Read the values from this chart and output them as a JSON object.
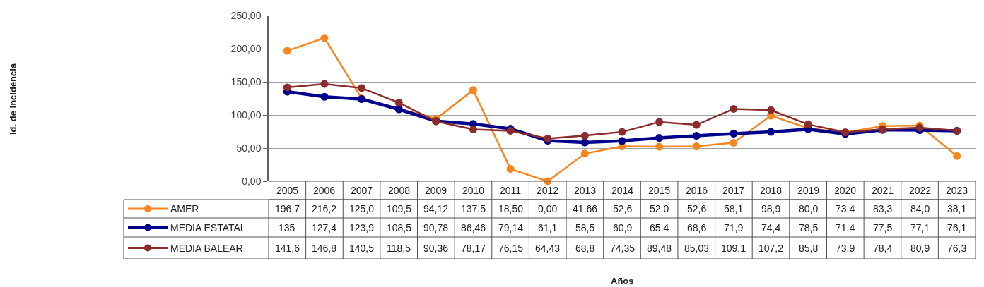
{
  "chart_data": {
    "type": "line",
    "annotations": [
      "Años",
      "Id. de incidencia"
    ],
    "categories": [
      "2005",
      "2006",
      "2007",
      "2008",
      "2009",
      "2010",
      "2011",
      "2012",
      "2013",
      "2014",
      "2015",
      "2016",
      "2017",
      "2018",
      "2019",
      "2020",
      "2021",
      "2022",
      "2023"
    ],
    "series": [
      {
        "name": "AMER",
        "color": "#f7861e",
        "values": [
          196.7,
          216.2,
          125.0,
          109.5,
          94.12,
          137.5,
          18.5,
          0.0,
          41.66,
          52.6,
          52.0,
          52.6,
          58.1,
          98.9,
          80.0,
          73.4,
          83.3,
          84.0,
          38.1
        ],
        "value_labels": [
          "196,7",
          "216,2",
          "125,0",
          "109,5",
          "94,12",
          "137,5",
          "18,50",
          "0,00",
          "41,66",
          "52,6",
          "52,0",
          "52,6",
          "58,1",
          "98,9",
          "80,0",
          "73,4",
          "83,3",
          "84,0",
          "38,1"
        ]
      },
      {
        "name": "MEDIA ESTATAL",
        "color": "#00008b",
        "values": [
          135,
          127.4,
          123.9,
          108.5,
          90.78,
          86.46,
          79.14,
          61.1,
          58.5,
          60.9,
          65.4,
          68.6,
          71.9,
          74.4,
          78.5,
          71.4,
          77.5,
          77.1,
          76.1
        ],
        "value_labels": [
          "135",
          "127,4",
          "123,9",
          "108,5",
          "90,78",
          "86,46",
          "79,14",
          "61,1",
          "58,5",
          "60,9",
          "65,4",
          "68,6",
          "71,9",
          "74,4",
          "78,5",
          "71,4",
          "77,5",
          "77,1",
          "76,1"
        ]
      },
      {
        "name": "MEDIA BALEAR",
        "color": "#8b2b2b",
        "values": [
          141.6,
          146.8,
          140.5,
          118.5,
          90.36,
          78.17,
          76.15,
          64.43,
          68.8,
          74.35,
          89.48,
          85.03,
          109.1,
          107.2,
          85.8,
          73.9,
          78.4,
          80.9,
          76.3
        ],
        "value_labels": [
          "141,6",
          "146,8",
          "140,5",
          "118,5",
          "90,36",
          "78,17",
          "76,15",
          "64,43",
          "68,8",
          "74,35",
          "89,48",
          "85,03",
          "109,1",
          "107,2",
          "85,8",
          "73,9",
          "78,4",
          "80,9",
          "76,3"
        ]
      }
    ],
    "ylim": [
      0,
      250
    ],
    "yticks": [
      {
        "value": 0,
        "label": "0,00"
      },
      {
        "value": 50,
        "label": "50,00"
      },
      {
        "value": 100,
        "label": "100,00"
      },
      {
        "value": 150,
        "label": "150,00"
      },
      {
        "value": 200,
        "label": "200,00"
      },
      {
        "value": 250,
        "label": "250,00"
      }
    ],
    "grid": "y",
    "legend": "bottom",
    "marker": "circle",
    "line_style": "solid"
  }
}
